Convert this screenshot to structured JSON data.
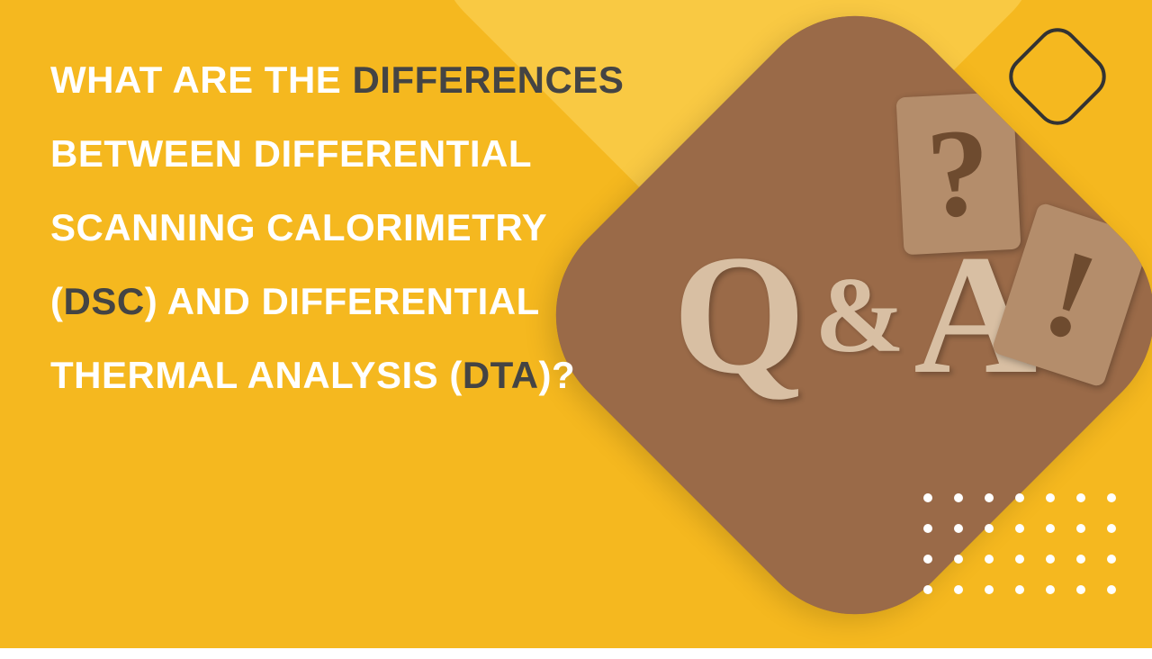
{
  "colors": {
    "bg": "#f5b81f",
    "bg_light_diamond": "#f9c943",
    "image_bg": "#9a6a48",
    "tile_bg": "#b48d6b",
    "letter_color": "#d8bfa3",
    "tile_symbol_color": "#6e4b2f",
    "outline": "#333333",
    "dot": "#ffffff",
    "text_white": "#ffffff",
    "text_gray": "#444444"
  },
  "headline": {
    "segments": [
      {
        "text": "WHAT ARE THE ",
        "style": "white"
      },
      {
        "text": "DIFFERENCES",
        "style": "gray"
      },
      {
        "text": " BETWEEN DIFFERENTIAL SCANNING CALORIMETRY (",
        "style": "white"
      },
      {
        "text": "DSC",
        "style": "gray"
      },
      {
        "text": ") AND DIFFERENTIAL THERMAL ANALYSIS (",
        "style": "white"
      },
      {
        "text": "DTA",
        "style": "gray"
      },
      {
        "text": ")?",
        "style": "white"
      }
    ],
    "font_size": 42,
    "line_height": 1.95
  },
  "image_area": {
    "letters": {
      "q": "Q",
      "amp": "&",
      "a": "A"
    },
    "tile_question": "?",
    "tile_exclaim": "!"
  },
  "dot_grid": {
    "rows": 4,
    "cols": 7
  }
}
